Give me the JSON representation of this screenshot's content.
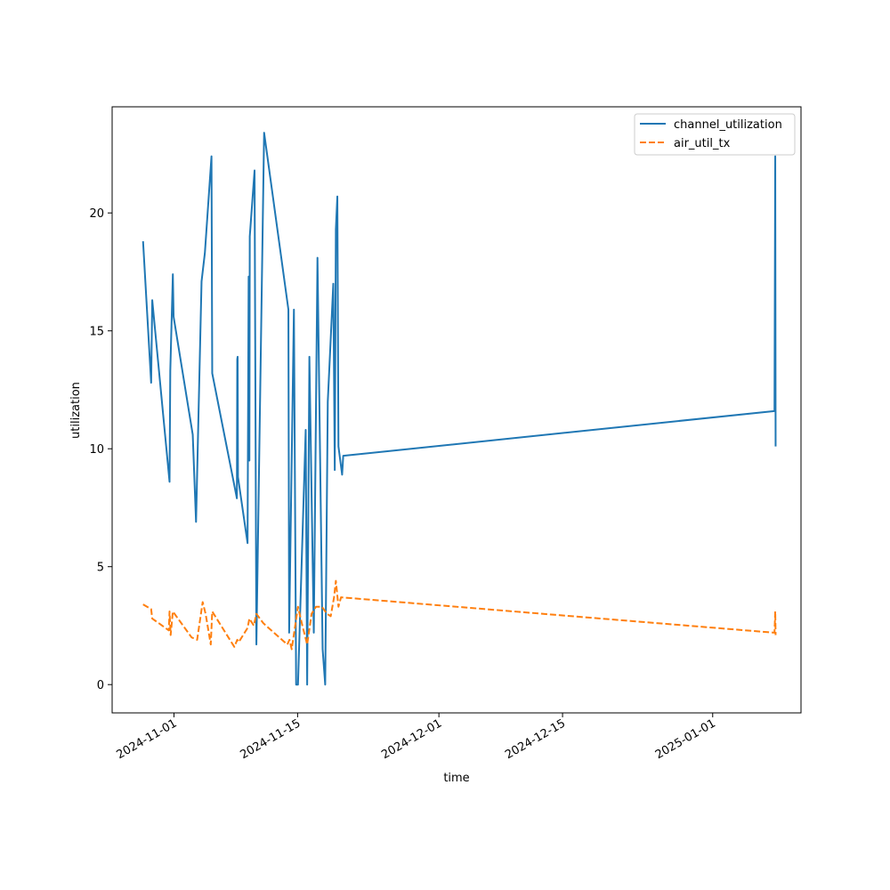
{
  "chart_data": {
    "type": "line",
    "xlabel": "time",
    "ylabel": "utilization",
    "x_scale": "date",
    "xlim": [
      "2024-10-25",
      "2025-01-11"
    ],
    "ylim": [
      -1.2,
      24.5
    ],
    "x_ticks": [
      "2024-11-01",
      "2024-11-15",
      "2024-12-01",
      "2024-12-15",
      "2025-01-01"
    ],
    "y_ticks": [
      0,
      5,
      10,
      15,
      20
    ],
    "grid": false,
    "legend_position": "top-right",
    "series": [
      {
        "name": "channel_utilization",
        "color": "#1f77b4",
        "style": "solid",
        "points": [
          [
            "2024-10-28T12:00",
            18.8
          ],
          [
            "2024-10-29T10:00",
            12.8
          ],
          [
            "2024-10-29T13:00",
            16.3
          ],
          [
            "2024-10-31T12:00",
            8.6
          ],
          [
            "2024-10-31T14:00",
            13.3
          ],
          [
            "2024-10-31T21:00",
            17.4
          ],
          [
            "2024-10-31T23:00",
            15.6
          ],
          [
            "2024-11-03T03:00",
            10.6
          ],
          [
            "2024-11-03T12:00",
            6.9
          ],
          [
            "2024-11-04T03:00",
            17.1
          ],
          [
            "2024-11-04T12:00",
            18.3
          ],
          [
            "2024-11-05T06:00",
            22.4
          ],
          [
            "2024-11-05T08:00",
            13.2
          ],
          [
            "2024-11-08T03:00",
            7.9
          ],
          [
            "2024-11-08T04:00",
            13.8
          ],
          [
            "2024-11-08T05:00",
            13.9
          ],
          [
            "2024-11-08T06:00",
            8.8
          ],
          [
            "2024-11-09T08:00",
            6.0
          ],
          [
            "2024-11-09T11:00",
            17.3
          ],
          [
            "2024-11-09T13:00",
            9.5
          ],
          [
            "2024-11-09T14:00",
            19.0
          ],
          [
            "2024-11-10T03:00",
            21.8
          ],
          [
            "2024-11-10T08:00",
            1.7
          ],
          [
            "2024-11-11T05:00",
            23.4
          ],
          [
            "2024-11-13T23:00",
            15.9
          ],
          [
            "2024-11-14T01:00",
            2.2
          ],
          [
            "2024-11-14T14:00",
            15.9
          ],
          [
            "2024-11-14T20:00",
            0
          ],
          [
            "2024-11-15T01:00",
            0
          ],
          [
            "2024-11-15T22:00",
            10.8
          ],
          [
            "2024-11-16T02:00",
            0
          ],
          [
            "2024-11-16T08:00",
            13.9
          ],
          [
            "2024-11-16T20:00",
            2.2
          ],
          [
            "2024-11-17T06:00",
            18.1
          ],
          [
            "2024-11-17T20:00",
            1.5
          ],
          [
            "2024-11-18T03:00",
            0
          ],
          [
            "2024-11-18T10:00",
            12.0
          ],
          [
            "2024-11-19T01:00",
            17.0
          ],
          [
            "2024-11-19T05:00",
            9.1
          ],
          [
            "2024-11-19T08:00",
            19.3
          ],
          [
            "2024-11-19T12:00",
            20.7
          ],
          [
            "2024-11-19T15:00",
            10.1
          ],
          [
            "2024-11-20T01:00",
            8.9
          ],
          [
            "2024-11-20T04:00",
            9.7
          ],
          [
            "2025-01-08T00:00",
            11.6
          ],
          [
            "2025-01-08T02:00",
            22.4
          ],
          [
            "2025-01-08T03:00",
            10.1
          ]
        ]
      },
      {
        "name": "air_util_tx",
        "color": "#ff7f0e",
        "style": "dashed",
        "points": [
          [
            "2024-10-28T12:00",
            3.4
          ],
          [
            "2024-10-29T10:00",
            3.2
          ],
          [
            "2024-10-29T13:00",
            2.8
          ],
          [
            "2024-10-31T10:00",
            2.3
          ],
          [
            "2024-10-31T12:00",
            3.1
          ],
          [
            "2024-10-31T15:00",
            2.1
          ],
          [
            "2024-10-31T21:00",
            3.1
          ],
          [
            "2024-11-03T00:00",
            2.0
          ],
          [
            "2024-11-03T15:00",
            1.9
          ],
          [
            "2024-11-04T06:00",
            3.5
          ],
          [
            "2024-11-04T14:00",
            3.0
          ],
          [
            "2024-11-05T04:00",
            1.7
          ],
          [
            "2024-11-05T08:00",
            3.1
          ],
          [
            "2024-11-06T12:00",
            2.4
          ],
          [
            "2024-11-07T20:00",
            1.6
          ],
          [
            "2024-11-08T04:00",
            1.9
          ],
          [
            "2024-11-08T08:00",
            1.8
          ],
          [
            "2024-11-09T08:00",
            2.4
          ],
          [
            "2024-11-09T13:00",
            2.8
          ],
          [
            "2024-11-10T01:00",
            2.5
          ],
          [
            "2024-11-10T08:00",
            3.0
          ],
          [
            "2024-11-11T03:00",
            2.6
          ],
          [
            "2024-11-13T20:00",
            1.7
          ],
          [
            "2024-11-14T02:00",
            1.9
          ],
          [
            "2024-11-14T08:00",
            1.5
          ],
          [
            "2024-11-15T01:00",
            3.3
          ],
          [
            "2024-11-15T13:00",
            2.5
          ],
          [
            "2024-11-16T02:00",
            1.7
          ],
          [
            "2024-11-16T14:00",
            3.0
          ],
          [
            "2024-11-17T02:00",
            3.3
          ],
          [
            "2024-11-17T18:00",
            3.3
          ],
          [
            "2024-11-18T08:00",
            3.0
          ],
          [
            "2024-11-18T18:00",
            2.9
          ],
          [
            "2024-11-19T03:00",
            3.7
          ],
          [
            "2024-11-19T08:00",
            4.4
          ],
          [
            "2024-11-19T15:00",
            3.3
          ],
          [
            "2024-11-19T22:00",
            3.7
          ],
          [
            "2025-01-08T00:00",
            2.2
          ],
          [
            "2025-01-08T02:00",
            3.1
          ],
          [
            "2025-01-08T03:00",
            2.1
          ]
        ]
      }
    ]
  }
}
